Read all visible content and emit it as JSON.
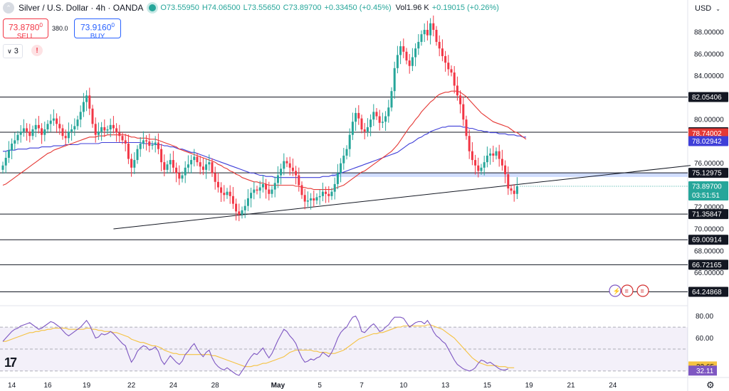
{
  "header": {
    "symbol": "Silver / U.S. Dollar · 4h · OANDA",
    "open": "O73.55950",
    "high": "H74.06500",
    "low": "L73.55650",
    "close": "C73.89700",
    "change": "+0.33450 (+0.45%)",
    "volume": "Vol1.96 K",
    "vol_change": "+0.19015 (+0.26%)"
  },
  "trade": {
    "sell_price": "73.8780",
    "sell_sup": "0",
    "sell_label": "SELL",
    "spread": "380.0",
    "buy_price": "73.9160",
    "buy_sup": "0",
    "buy_label": "BUY"
  },
  "indicators": {
    "count": "3",
    "alert": "!"
  },
  "currency": "USD",
  "colors": {
    "up": "#26a69a",
    "down": "#f23645",
    "ma_fast": "#e53935",
    "ma_slow": "#3f3fd8",
    "rsi": "#7e57c2",
    "rsi_ma": "#f5c242"
  },
  "chart_data": {
    "type": "candlestick",
    "title": "Silver / U.S. Dollar · 4h · OANDA",
    "ylim": [
      63.5,
      89.5
    ],
    "y_ticks": [
      64,
      66,
      68,
      70,
      72,
      74,
      76,
      78,
      80,
      82,
      84,
      86,
      88
    ],
    "y_tick_labels": [
      "",
      "66.00000",
      "68.00000",
      "70.00000",
      "72.00000",
      "",
      "76.00000",
      "",
      "80.00000",
      "",
      "84.00000",
      "86.00000",
      "88.00000"
    ],
    "x_labels": [
      {
        "i": 3,
        "label": "14"
      },
      {
        "i": 15,
        "label": "16"
      },
      {
        "i": 28,
        "label": "19"
      },
      {
        "i": 43,
        "label": "22"
      },
      {
        "i": 57,
        "label": "24"
      },
      {
        "i": 71,
        "label": "28"
      },
      {
        "i": 92,
        "label": "May"
      },
      {
        "i": 106,
        "label": "5"
      },
      {
        "i": 120,
        "label": "7"
      },
      {
        "i": 134,
        "label": "10"
      },
      {
        "i": 148,
        "label": "13"
      },
      {
        "i": 162,
        "label": "15"
      },
      {
        "i": 176,
        "label": "19"
      },
      {
        "i": 190,
        "label": "21"
      },
      {
        "i": 204,
        "label": "24"
      }
    ],
    "candles_close": [
      75.8,
      76.5,
      77.2,
      77.8,
      78.1,
      78.6,
      78.9,
      79.2,
      78.9,
      78.5,
      79.1,
      79.5,
      79.2,
      78.6,
      79.1,
      79.6,
      79.9,
      80.1,
      79.6,
      79.2,
      78.5,
      78.3,
      78.9,
      79.1,
      79.4,
      80.0,
      80.7,
      81.6,
      82.2,
      81.0,
      79.6,
      78.6,
      78.9,
      79.3,
      79.0,
      79.1,
      79.5,
      79.2,
      78.8,
      78.5,
      78.1,
      77.8,
      76.4,
      75.6,
      76.3,
      77.3,
      77.8,
      78.1,
      78.0,
      77.6,
      77.7,
      77.9,
      77.3,
      76.1,
      75.4,
      75.9,
      76.3,
      75.6,
      75.1,
      74.6,
      74.9,
      75.6,
      75.9,
      76.3,
      76.6,
      76.1,
      75.7,
      75.4,
      75.9,
      76.1,
      75.1,
      74.3,
      73.8,
      73.3,
      73.1,
      73.4,
      73.0,
      72.3,
      71.6,
      71.3,
      71.7,
      72.1,
      72.8,
      73.3,
      73.6,
      73.5,
      73.8,
      74.1,
      73.6,
      73.2,
      73.6,
      74.2,
      74.9,
      75.5,
      76.2,
      76.0,
      75.6,
      75.3,
      74.9,
      74.0,
      73.1,
      72.5,
      72.6,
      72.8,
      72.6,
      72.9,
      73.0,
      73.4,
      73.2,
      73.0,
      73.4,
      74.1,
      75.1,
      76.0,
      76.7,
      77.3,
      78.6,
      79.8,
      80.6,
      80.1,
      79.1,
      78.9,
      79.3,
      80.0,
      80.7,
      80.3,
      79.7,
      79.8,
      80.3,
      81.1,
      82.6,
      84.7,
      85.9,
      86.7,
      86.2,
      85.4,
      84.9,
      85.7,
      86.5,
      87.1,
      87.8,
      88.2,
      87.7,
      88.8,
      88.2,
      87.1,
      86.5,
      85.8,
      85.2,
      84.6,
      84.3,
      83.1,
      82.2,
      81.4,
      80.0,
      78.5,
      77.1,
      76.3,
      75.8,
      75.3,
      75.6,
      76.1,
      76.7,
      76.9,
      76.7,
      77.1,
      76.4,
      75.8,
      75.0,
      73.7,
      73.5,
      73.2,
      73.9
    ],
    "ma_fast": [
      74.0,
      74.1,
      74.3,
      74.5,
      74.7,
      74.9,
      75.1,
      75.3,
      75.5,
      75.7,
      75.9,
      76.1,
      76.3,
      76.5,
      76.7,
      76.9,
      77.0,
      77.2,
      77.3,
      77.4,
      77.5,
      77.6,
      77.7,
      77.8,
      77.9,
      78.0,
      78.1,
      78.2,
      78.3,
      78.4,
      78.4,
      78.4,
      78.5,
      78.5,
      78.5,
      78.6,
      78.6,
      78.6,
      78.6,
      78.6,
      78.6,
      78.6,
      78.5,
      78.4,
      78.4,
      78.3,
      78.3,
      78.3,
      78.3,
      78.2,
      78.2,
      78.2,
      78.1,
      78.0,
      77.9,
      77.8,
      77.7,
      77.6,
      77.5,
      77.3,
      77.2,
      77.1,
      77.0,
      76.9,
      76.8,
      76.7,
      76.6,
      76.5,
      76.4,
      76.3,
      76.2,
      76.1,
      75.9,
      75.8,
      75.6,
      75.5,
      75.3,
      75.2,
      75.0,
      74.9,
      74.7,
      74.6,
      74.5,
      74.4,
      74.3,
      74.3,
      74.2,
      74.2,
      74.1,
      74.0,
      74.0,
      74.0,
      74.0,
      74.0,
      74.0,
      74.0,
      74.0,
      74.0,
      73.9,
      73.9,
      73.8,
      73.8,
      73.7,
      73.7,
      73.6,
      73.6,
      73.6,
      73.6,
      73.6,
      73.6,
      73.6,
      73.7,
      73.8,
      73.9,
      74.0,
      74.2,
      74.4,
      74.6,
      74.8,
      75.0,
      75.2,
      75.3,
      75.5,
      75.7,
      75.9,
      76.1,
      76.3,
      76.5,
      76.7,
      76.9,
      77.1,
      77.4,
      77.7,
      78.1,
      78.5,
      78.9,
      79.3,
      79.6,
      80.0,
      80.3,
      80.7,
      81.0,
      81.3,
      81.6,
      81.8,
      82.1,
      82.3,
      82.4,
      82.5,
      82.5,
      82.6,
      82.6,
      82.6,
      82.5,
      82.3,
      82.1,
      81.8,
      81.5,
      81.2,
      80.9,
      80.6,
      80.4,
      80.2,
      80.0,
      79.8,
      79.7,
      79.6,
      79.5,
      79.4,
      79.3,
      79.1,
      78.9,
      78.8,
      78.6,
      78.4,
      78.2
    ],
    "ma_slow": [
      77.1,
      77.1,
      77.2,
      77.2,
      77.2,
      77.3,
      77.3,
      77.3,
      77.3,
      77.4,
      77.4,
      77.4,
      77.4,
      77.5,
      77.5,
      77.5,
      77.5,
      77.6,
      77.6,
      77.6,
      77.6,
      77.7,
      77.7,
      77.7,
      77.7,
      77.7,
      77.8,
      77.8,
      77.8,
      77.8,
      77.8,
      77.8,
      77.8,
      77.9,
      77.9,
      77.9,
      77.9,
      77.9,
      77.9,
      77.9,
      77.9,
      77.9,
      77.9,
      77.9,
      77.9,
      77.9,
      77.9,
      77.8,
      77.8,
      77.8,
      77.8,
      77.7,
      77.7,
      77.7,
      77.6,
      77.6,
      77.5,
      77.5,
      77.4,
      77.3,
      77.3,
      77.2,
      77.1,
      77.0,
      77.0,
      76.9,
      76.8,
      76.7,
      76.6,
      76.5,
      76.4,
      76.3,
      76.2,
      76.1,
      76.0,
      75.9,
      75.8,
      75.7,
      75.6,
      75.5,
      75.4,
      75.3,
      75.2,
      75.1,
      75.1,
      75.0,
      74.9,
      74.9,
      74.8,
      74.8,
      74.8,
      74.7,
      74.7,
      74.7,
      74.7,
      74.7,
      74.7,
      74.7,
      74.7,
      74.7,
      74.7,
      74.7,
      74.7,
      74.7,
      74.7,
      74.7,
      74.7,
      74.8,
      74.8,
      74.8,
      74.9,
      74.9,
      75.0,
      75.1,
      75.2,
      75.3,
      75.4,
      75.5,
      75.6,
      75.7,
      75.8,
      75.9,
      76.0,
      76.1,
      76.2,
      76.3,
      76.4,
      76.5,
      76.6,
      76.7,
      76.8,
      76.9,
      77.0,
      77.2,
      77.4,
      77.6,
      77.8,
      77.9,
      78.1,
      78.3,
      78.4,
      78.6,
      78.7,
      78.9,
      79.0,
      79.1,
      79.2,
      79.3,
      79.3,
      79.4,
      79.4,
      79.4,
      79.4,
      79.4,
      79.3,
      79.3,
      79.2,
      79.2,
      79.1,
      79.0,
      79.0,
      78.9,
      78.9,
      78.8,
      78.8,
      78.8,
      78.7,
      78.7,
      78.7,
      78.6,
      78.6,
      78.6,
      78.5,
      78.5,
      78.4,
      78.4
    ],
    "trendline": {
      "from": {
        "i": 37,
        "value": 70.0
      },
      "to": {
        "i": 230,
        "value": 75.8
      }
    },
    "horizontal_levels": [
      {
        "value": 82.05406,
        "label": "82.05406",
        "color": "#131722"
      },
      {
        "value": 78.84143,
        "label": "78.84143",
        "color": "#131722"
      },
      {
        "value": 78.74002,
        "label": "78.74002",
        "color": "#e53935"
      },
      {
        "value": 78.02942,
        "label": "78.02942",
        "color": "#3f3fd8"
      },
      {
        "value": 75.12975,
        "label": "75.12975",
        "color": "#131722"
      },
      {
        "value": 71.35847,
        "label": "71.35847",
        "color": "#131722"
      },
      {
        "value": 69.00914,
        "label": "69.00914",
        "color": "#131722"
      },
      {
        "value": 66.72165,
        "label": "66.72165",
        "color": "#131722"
      },
      {
        "value": 64.24868,
        "label": "64.24868",
        "color": "#131722"
      }
    ],
    "resistance_band": {
      "from": 74.75,
      "to": 75.15,
      "start_i": 110
    },
    "last_price": {
      "value": 73.897,
      "label": "73.89700",
      "countdown": "03:51:51"
    },
    "rsi": {
      "ylim": [
        28,
        83
      ],
      "y_tick_labels": [
        {
          "value": 80,
          "label": "80.00"
        },
        {
          "value": 60,
          "label": "60.00"
        }
      ],
      "bands": [
        70,
        50,
        30
      ],
      "rsi_value": "32.11",
      "rsi_ma_value": "32.65",
      "values": [
        57,
        60,
        63,
        66,
        68,
        69,
        71,
        72,
        73,
        74,
        72,
        70,
        68,
        69,
        71,
        73,
        75,
        74,
        72,
        70,
        67,
        64,
        62,
        64,
        66,
        68,
        70,
        73,
        76,
        72,
        66,
        60,
        61,
        64,
        63,
        64,
        66,
        64,
        61,
        58,
        55,
        53,
        45,
        38,
        42,
        48,
        51,
        53,
        52,
        49,
        50,
        52,
        48,
        40,
        36,
        40,
        44,
        41,
        38,
        36,
        39,
        45,
        48,
        52,
        55,
        50,
        46,
        43,
        47,
        49,
        42,
        37,
        34,
        32,
        31,
        33,
        31,
        29,
        27,
        26,
        30,
        34,
        39,
        43,
        46,
        45,
        48,
        51,
        46,
        42,
        46,
        52,
        58,
        63,
        68,
        66,
        62,
        59,
        55,
        48,
        42,
        38,
        39,
        41,
        40,
        42,
        43,
        47,
        45,
        43,
        47,
        53,
        60,
        65,
        68,
        70,
        75,
        79,
        80,
        75,
        66,
        65,
        68,
        71,
        73,
        70,
        66,
        67,
        70,
        72,
        76,
        79,
        79,
        79,
        78,
        74,
        70,
        72,
        74,
        75,
        75,
        73,
        76,
        72,
        66,
        62,
        60,
        57,
        55,
        50,
        45,
        40,
        36,
        34,
        32,
        31,
        30,
        31,
        33,
        37,
        40,
        39,
        37,
        38,
        36,
        34,
        32,
        31,
        31,
        32
      ]
    },
    "rsi_ma": [
      57,
      57,
      58,
      59,
      60,
      61,
      62,
      63,
      64,
      65,
      65,
      66,
      66,
      67,
      67,
      68,
      68,
      69,
      69,
      69,
      69,
      69,
      68,
      68,
      68,
      68,
      68,
      68,
      69,
      69,
      68,
      68,
      67,
      67,
      66,
      66,
      66,
      65,
      65,
      64,
      63,
      62,
      61,
      59,
      58,
      57,
      56,
      56,
      55,
      54,
      53,
      53,
      52,
      51,
      49,
      48,
      47,
      46,
      46,
      45,
      45,
      45,
      45,
      45,
      45,
      45,
      45,
      45,
      45,
      45,
      44,
      44,
      43,
      42,
      41,
      40,
      39,
      38,
      37,
      36,
      35,
      34,
      34,
      34,
      35,
      35,
      36,
      37,
      37,
      38,
      39,
      40,
      41,
      42,
      43,
      45,
      47,
      48,
      49,
      49,
      49,
      49,
      49,
      49,
      48,
      48,
      47,
      47,
      47,
      46,
      46,
      46,
      47,
      48,
      49,
      51,
      53,
      55,
      57,
      59,
      60,
      61,
      62,
      63,
      64,
      64,
      65,
      65,
      66,
      67,
      68,
      69,
      70,
      70,
      71,
      71,
      71,
      71,
      71,
      71,
      71,
      71,
      72,
      72,
      71,
      70,
      69,
      68,
      66,
      64,
      62,
      60,
      57,
      54,
      51,
      48,
      45,
      42,
      40,
      38,
      37,
      36,
      35,
      35,
      35,
      35,
      34,
      34,
      34,
      33,
      33,
      33
    ]
  }
}
